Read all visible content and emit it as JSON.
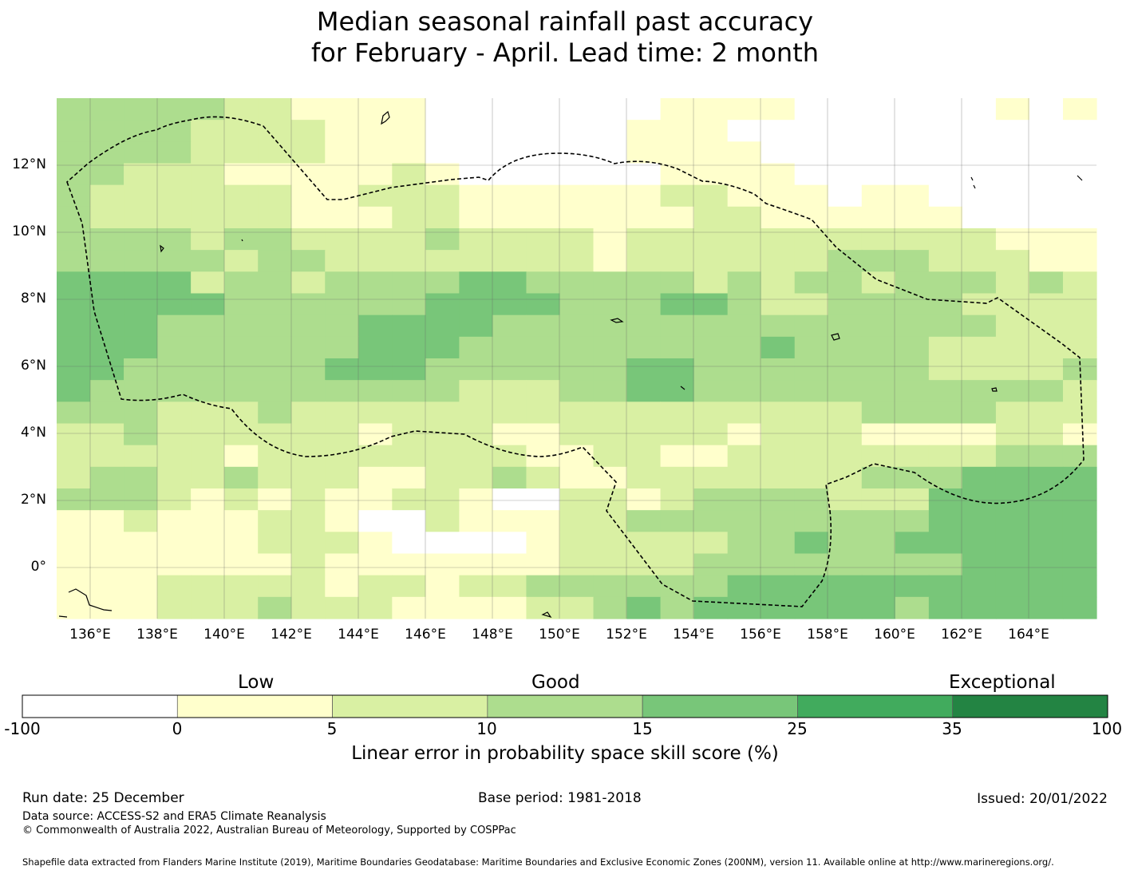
{
  "title": {
    "line1": "Median seasonal rainfall past accuracy",
    "line2": "for February - April. Lead time: 2 month"
  },
  "map": {
    "lon_labels": [
      "136°E",
      "138°E",
      "140°E",
      "142°E",
      "144°E",
      "146°E",
      "148°E",
      "150°E",
      "152°E",
      "154°E",
      "156°E",
      "158°E",
      "160°E",
      "162°E",
      "164°E"
    ],
    "lat_labels": [
      "12°N",
      "10°N",
      "8°N",
      "6°N",
      "4°N",
      "2°N",
      "0°"
    ],
    "lon_range": [
      135,
      166
    ],
    "lat_range": [
      -1.5,
      14
    ],
    "grid_degrees": 0.83,
    "cells": [
      "3333322111100000001111000000101",
      "3333222211100000011100000000000",
      "3333222211100000011110000000000",
      "3322211111210000001111000000000",
      "3222222112221111112211101100000",
      "3222222111221111111221111110000",
      "3333233222232222122222222222111",
      "3333323322222222122222233322211",
      "4444233233334433333232332333232",
      "4444433333344443334432233332222",
      "4443333334444333333333333333222",
      "4443333334443333333334333322222",
      "4433333344433333344333333322223",
      "4333333333332223344333333333332",
      "3332223222222222222222223333222",
      "2232222221222112222212221111221",
      "2222212222222211221122222222333",
      "2332232221122321122222223334444",
      "3332121211221002212333322244444",
      "1121112210021112233333333344444",
      "1111112221000012222233433444444",
      "1111111211111112222333333334444",
      "1112222212212233333344444444444",
      "1112223222111122343444444344444"
    ],
    "islands": "Shoreline fragments of Guam, Palau, Chuuk, Pohnpei and Bougainville shown as small outlines"
  },
  "colorbar": {
    "categories": [
      "Low",
      "Good",
      "Exceptional"
    ],
    "ticks": [
      "-100",
      "0",
      "5",
      "10",
      "15",
      "25",
      "35",
      "100"
    ],
    "colors": [
      "#ffffff",
      "#ffffcc",
      "#d9f0a3",
      "#addd8e",
      "#78c679",
      "#41ab5d",
      "#238443"
    ],
    "title": "Linear error in probability space skill score (%)"
  },
  "footer": {
    "run_date": "Run date: 25 December",
    "base_period": "Base period: 1981-2018",
    "issued": "Issued: 20/01/2022",
    "data_source": "Data source: ACCESS-S2 and ERA5 Climate Reanalysis",
    "copyright": "© Commonwealth of Australia 2022, Australian Bureau of Meteorology, Supported by COSPPac",
    "shapefile": "Shapefile data extracted from Flanders Marine Institute (2019), Maritime Boundaries Geodatabase: Maritime Boundaries and Exclusive Economic Zones (200NM), version 11. Available online at http://www.marineregions.org/."
  }
}
